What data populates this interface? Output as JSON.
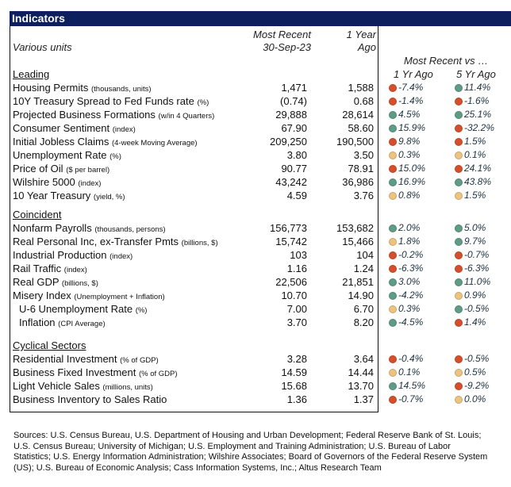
{
  "title": "Indicators",
  "header": {
    "units": "Various units",
    "most_recent": "Most Recent",
    "date": "30-Sep-23",
    "year_ago_1": "1 Year",
    "year_ago_2": "Ago",
    "vs": "Most Recent vs …",
    "col_1yr": "1 Yr Ago",
    "col_5yr": "5 Yr Ago"
  },
  "colors": {
    "red": "#d64f2c",
    "green": "#5e9c86",
    "yellow": "#ecc47f"
  },
  "sections": [
    {
      "name": "Leading",
      "rows": [
        {
          "label": "Housing Permits",
          "unit": "(thousands, units)",
          "recent": "1,471",
          "ago": "1,588",
          "c1": "-7.4%",
          "s1": "red",
          "c5": "11.4%",
          "s5": "green"
        },
        {
          "label": "10Y Treasury Spread to Fed Funds rate",
          "unit": "(%)",
          "recent": "(0.74)",
          "ago": "0.68",
          "c1": "-1.4%",
          "s1": "red",
          "c5": "-1.6%",
          "s5": "red"
        },
        {
          "label": "Projected Business Formations",
          "unit": "(w/in 4 Quarters)",
          "recent": "29,888",
          "ago": "28,614",
          "c1": "4.5%",
          "s1": "green",
          "c5": "25.1%",
          "s5": "green"
        },
        {
          "label": "Consumer Sentiment",
          "unit": "(index)",
          "recent": "67.90",
          "ago": "58.60",
          "c1": "15.9%",
          "s1": "green",
          "c5": "-32.2%",
          "s5": "red"
        },
        {
          "label": "Initial Jobless Claims",
          "unit": "(4-week Moving Average)",
          "recent": "209,250",
          "ago": "190,500",
          "c1": "9.8%",
          "s1": "red",
          "c5": "1.5%",
          "s5": "red"
        },
        {
          "label": "Unemployment Rate",
          "unit": "(%)",
          "recent": "3.80",
          "ago": "3.50",
          "c1": "0.3%",
          "s1": "yellow",
          "c5": "0.1%",
          "s5": "yellow"
        },
        {
          "label": "Price of Oil",
          "unit": "($ per barrel)",
          "recent": "90.77",
          "ago": "78.91",
          "c1": "15.0%",
          "s1": "red",
          "c5": "24.1%",
          "s5": "red"
        },
        {
          "label": "Wilshire 5000",
          "unit": "(index)",
          "recent": "43,242",
          "ago": "36,986",
          "c1": "16.9%",
          "s1": "green",
          "c5": "43.8%",
          "s5": "green"
        },
        {
          "label": "10 Year Treasury",
          "unit": "(yield, %)",
          "recent": "4.59",
          "ago": "3.76",
          "c1": "0.8%",
          "s1": "yellow",
          "c5": "1.5%",
          "s5": "yellow"
        }
      ]
    },
    {
      "name": "Coincident",
      "rows": [
        {
          "label": "Nonfarm Payrolls",
          "unit": "(thousands, persons)",
          "recent": "156,773",
          "ago": "153,682",
          "c1": "2.0%",
          "s1": "green",
          "c5": "5.0%",
          "s5": "green"
        },
        {
          "label": "Real Personal Inc, ex-Transfer Pmts",
          "unit": "(billions, $)",
          "recent": "15,742",
          "ago": "15,466",
          "c1": "1.8%",
          "s1": "yellow",
          "c5": "9.7%",
          "s5": "green"
        },
        {
          "label": "Industrial Production",
          "unit": "(index)",
          "recent": "103",
          "ago": "104",
          "c1": "-0.2%",
          "s1": "red",
          "c5": "-0.7%",
          "s5": "red"
        },
        {
          "label": "Rail Traffic",
          "unit": "(index)",
          "recent": "1.16",
          "ago": "1.24",
          "c1": "-6.3%",
          "s1": "red",
          "c5": "-6.3%",
          "s5": "red"
        },
        {
          "label": "Real GDP",
          "unit": "(billions, $)",
          "recent": "22,506",
          "ago": "21,851",
          "c1": "3.0%",
          "s1": "green",
          "c5": "11.0%",
          "s5": "green"
        },
        {
          "label": "Misery Index",
          "unit": "(Unemployment + Inflation)",
          "recent": "10.70",
          "ago": "14.90",
          "c1": "-4.2%",
          "s1": "green",
          "c5": "0.9%",
          "s5": "yellow"
        },
        {
          "label": "U-6 Unemployment Rate",
          "unit": "(%)",
          "indent": true,
          "recent": "7.00",
          "ago": "6.70",
          "c1": "0.3%",
          "s1": "yellow",
          "c5": "-0.5%",
          "s5": "green"
        },
        {
          "label": "Inflation",
          "unit": "(CPI Average)",
          "indent": true,
          "recent": "3.70",
          "ago": "8.20",
          "c1": "-4.5%",
          "s1": "green",
          "c5": "1.4%",
          "s5": "red"
        }
      ]
    },
    {
      "name": "Cyclical Sectors",
      "rows": [
        {
          "label": "Residential Investment",
          "unit": "(% of GDP)",
          "recent": "3.28",
          "ago": "3.64",
          "c1": "-0.4%",
          "s1": "red",
          "c5": "-0.5%",
          "s5": "red"
        },
        {
          "label": "Business Fixed Investment",
          "unit": "(% of GDP)",
          "recent": "14.59",
          "ago": "14.44",
          "c1": "0.1%",
          "s1": "yellow",
          "c5": "0.5%",
          "s5": "yellow"
        },
        {
          "label": "Light Vehicle Sales",
          "unit": "(millions, units)",
          "recent": "15.68",
          "ago": "13.70",
          "c1": "14.5%",
          "s1": "green",
          "c5": "-9.2%",
          "s5": "red"
        },
        {
          "label": "Business Inventory to Sales Ratio",
          "unit": "",
          "recent": "1.36",
          "ago": "1.37",
          "c1": "-0.7%",
          "s1": "red",
          "c5": "0.0%",
          "s5": "yellow"
        }
      ]
    }
  ],
  "sources": "Sources: U.S. Census Bureau, U.S. Department of Housing and Urban Development; Federal Reserve Bank of St. Louis; U.S. Census Bureau; University of Michigan; U.S. Employment and Training Administration; U.S. Bureau of Labor Statistics; U.S. Energy Information Administration; Wilshire Associates; Board of Governors of the Federal Reserve System (US); U.S. Bureau of Economic Analysis; Cass Information Systems, Inc.; Altus Research Team"
}
